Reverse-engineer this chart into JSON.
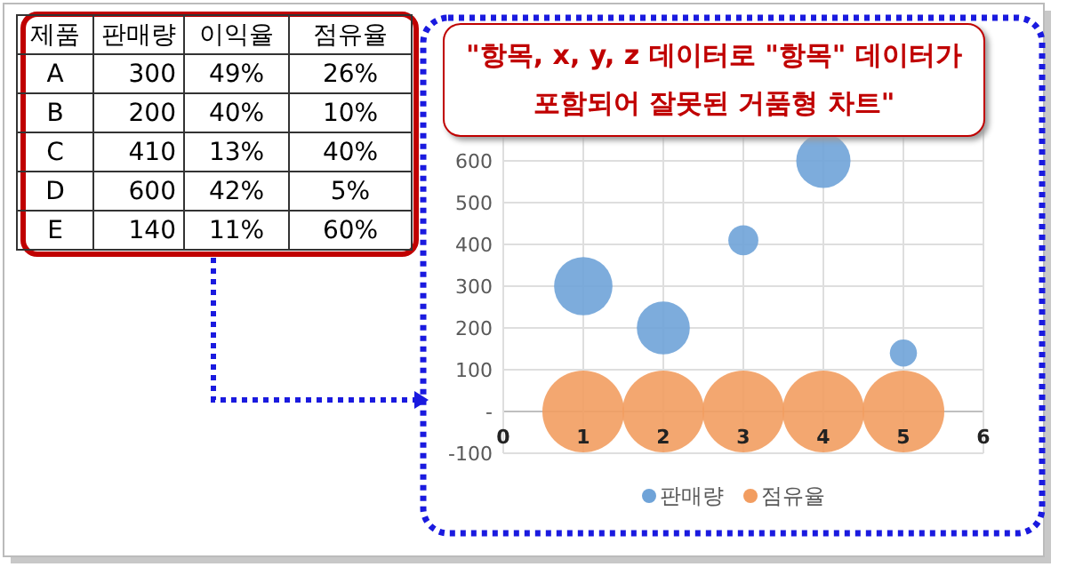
{
  "chart_data": [
    {
      "type": "other",
      "annotations": [
        "제품",
        "판매량",
        "이익율",
        "점유율",
        "A",
        "300",
        "49%",
        "26%",
        "B",
        "200",
        "40%",
        "10%",
        "C",
        "410",
        "13%",
        "40%",
        "D",
        "600",
        "42%",
        "5%",
        "E",
        "140",
        "11%",
        "60%"
      ]
    },
    {
      "type": "bubble",
      "annotations": [
        "\"항목, x, y, z 데이터로 \"항목\" 데이터가 포함되어 잘못된 거품형 차트\""
      ],
      "xlim": [
        0,
        6
      ],
      "xticks": [
        0,
        1,
        2,
        3,
        4,
        5,
        6
      ],
      "ylim": [
        -100,
        700
      ],
      "yticks": [
        -100,
        {
          "value": 0,
          "label": "-"
        },
        100,
        200,
        300,
        400,
        500,
        600
      ],
      "grid": true,
      "legend": "bottom",
      "series": [
        {
          "name": "판매량",
          "color": "#6fa3d8",
          "x": [
            1,
            2,
            3,
            4,
            5
          ],
          "values": [
            300,
            200,
            410,
            600,
            140
          ],
          "sizes": [
            0.51,
            0.42,
            0.135,
            0.44,
            0.11
          ]
        },
        {
          "name": "점유율",
          "color": "#f29d60",
          "x": [
            1,
            2,
            3,
            4,
            5
          ],
          "values": [
            0,
            0,
            0,
            0,
            0
          ],
          "sizes": [
            1,
            1,
            1,
            1,
            1
          ]
        }
      ]
    }
  ]
}
